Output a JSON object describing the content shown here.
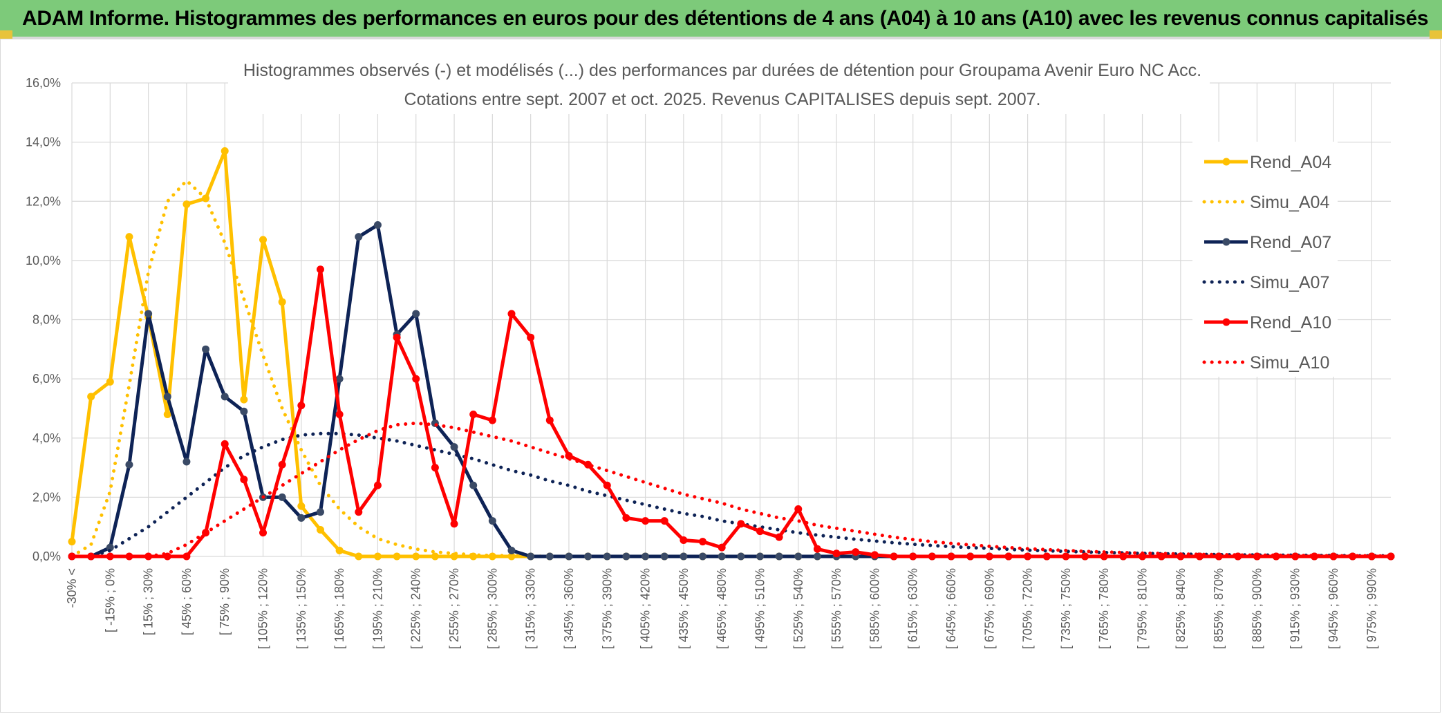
{
  "banner": {
    "title": "ADAM Informe. Histogrammes des performances en euros pour des détentions de 4 ans (A04) à 10 ans (A10) avec les revenus connus capitalisés"
  },
  "colors": {
    "banner_bg": "#7dca7a",
    "A04": "#ffc000",
    "A07": "#0e2356",
    "A10": "#ff0000",
    "grid": "#d9d9d9",
    "text": "#595959"
  },
  "chart_data": {
    "type": "line",
    "title_line1": "Histogrammes observés (-) et modélisés (...) des performances par durées de détention pour Groupama Avenir Euro NC Acc.",
    "title_line2": "Cotations entre sept. 2007 et oct. 2025. Revenus CAPITALISES depuis sept. 2007.",
    "ylim": [
      0,
      16
    ],
    "y_ticks": [
      "0,0%",
      "2,0%",
      "4,0%",
      "6,0%",
      "8,0%",
      "10,0%",
      "12,0%",
      "14,0%",
      "16,0%"
    ],
    "x_tick_labels": [
      "-30% <",
      "[ -15% ; 0%",
      "[ 15% ; 30%",
      "[ 45% ; 60%",
      "[ 75% ; 90%",
      "[ 105% ; 120%",
      "[ 135% ; 150%",
      "[ 165% ; 180%",
      "[ 195% ; 210%",
      "[ 225% ; 240%",
      "[ 255% ; 270%",
      "[ 285% ; 300%",
      "[ 315% ; 330%",
      "[ 345% ; 360%",
      "[ 375% ; 390%",
      "[ 405% ; 420%",
      "[ 435% ; 450%",
      "[ 465% ; 480%",
      "[ 495% ; 510%",
      "[ 525% ; 540%",
      "[ 555% ; 570%",
      "[ 585% ; 600%",
      "[ 615% ; 630%",
      "[ 645% ; 660%",
      "[ 675% ; 690%",
      "[ 705% ; 720%",
      "[ 735% ; 750%",
      "[ 765% ; 780%",
      "[ 795% ; 810%",
      "[ 825% ; 840%",
      "[ 855% ; 870%",
      "[ 885% ; 900%",
      "[ 915% ; 930%",
      "[ 945% ; 960%",
      "[ 975% ; 990%"
    ],
    "n_points": 70,
    "series": [
      {
        "name": "Rend_A04",
        "style": "solid",
        "color": "#ffc000",
        "values": [
          0.5,
          5.4,
          5.9,
          10.8,
          8.1,
          4.8,
          11.9,
          12.1,
          13.7,
          5.3,
          10.7,
          8.6,
          1.7,
          0.9,
          0.2,
          0,
          0,
          0,
          0,
          0,
          0,
          0,
          0,
          0,
          0,
          0,
          0,
          0,
          0,
          0,
          0,
          0,
          0,
          0,
          0,
          0,
          0,
          0,
          0,
          0,
          0,
          0,
          0,
          0,
          0,
          0,
          0,
          0,
          0,
          0,
          0,
          0,
          0,
          0,
          0,
          0,
          0,
          0,
          0,
          0,
          0,
          0,
          0,
          0,
          0,
          0,
          0,
          0,
          0,
          0
        ]
      },
      {
        "name": "Simu_A04",
        "style": "dotted",
        "color": "#ffc000",
        "values": [
          0,
          0.4,
          2.2,
          5.8,
          9.6,
          12.0,
          12.7,
          12.1,
          10.6,
          8.7,
          6.8,
          5.0,
          3.6,
          2.4,
          1.6,
          1.0,
          0.6,
          0.4,
          0.25,
          0.15,
          0.1,
          0.05,
          0.03,
          0.02,
          0.01,
          0,
          0,
          0,
          0,
          0,
          0,
          0,
          0,
          0,
          0,
          0,
          0,
          0,
          0,
          0,
          0,
          0,
          0,
          0,
          0,
          0,
          0,
          0,
          0,
          0,
          0,
          0,
          0,
          0,
          0,
          0,
          0,
          0,
          0,
          0,
          0,
          0,
          0,
          0,
          0,
          0,
          0,
          0,
          0,
          0
        ]
      },
      {
        "name": "Rend_A07",
        "style": "solid",
        "color": "#0e2356",
        "values": [
          0,
          0,
          0.3,
          3.1,
          8.2,
          5.4,
          3.2,
          7.0,
          5.4,
          4.9,
          2.0,
          2.0,
          1.3,
          1.5,
          6.0,
          10.8,
          11.2,
          7.5,
          8.2,
          4.5,
          3.7,
          2.4,
          1.2,
          0.2,
          0,
          0,
          0,
          0,
          0,
          0,
          0,
          0,
          0,
          0,
          0,
          0,
          0,
          0,
          0,
          0,
          0,
          0,
          0,
          0,
          0,
          0,
          0,
          0,
          0,
          0,
          0,
          0,
          0,
          0,
          0,
          0,
          0,
          0,
          0,
          0,
          0,
          0,
          0,
          0,
          0,
          0,
          0,
          0,
          0,
          0
        ]
      },
      {
        "name": "Simu_A07",
        "style": "dotted",
        "color": "#0e2356",
        "values": [
          0,
          0,
          0.2,
          0.6,
          1.0,
          1.5,
          2.0,
          2.5,
          3.0,
          3.4,
          3.7,
          3.95,
          4.1,
          4.15,
          4.15,
          4.1,
          4.0,
          3.9,
          3.75,
          3.6,
          3.45,
          3.3,
          3.1,
          2.9,
          2.75,
          2.55,
          2.4,
          2.2,
          2.05,
          1.9,
          1.75,
          1.6,
          1.45,
          1.35,
          1.2,
          1.1,
          1.0,
          0.9,
          0.8,
          0.72,
          0.65,
          0.58,
          0.52,
          0.46,
          0.41,
          0.37,
          0.33,
          0.3,
          0.27,
          0.24,
          0.21,
          0.19,
          0.17,
          0.15,
          0.13,
          0.12,
          0.1,
          0.09,
          0.08,
          0.07,
          0.06,
          0.05,
          0.05,
          0.04,
          0.04,
          0.03,
          0.03,
          0.02,
          0.02,
          0.02
        ]
      },
      {
        "name": "Rend_A10",
        "style": "solid",
        "color": "#ff0000",
        "values": [
          0,
          0,
          0,
          0,
          0,
          0,
          0,
          0.8,
          3.8,
          2.6,
          0.8,
          3.1,
          5.1,
          9.7,
          4.8,
          1.5,
          2.4,
          7.4,
          6.0,
          3.0,
          1.1,
          4.8,
          4.6,
          8.2,
          7.4,
          4.6,
          3.4,
          3.1,
          2.4,
          1.3,
          1.2,
          1.2,
          0.55,
          0.5,
          0.3,
          1.1,
          0.85,
          0.65,
          1.6,
          0.25,
          0.1,
          0.15,
          0.05,
          0,
          0,
          0,
          0,
          0,
          0,
          0,
          0,
          0,
          0,
          0,
          0,
          0,
          0,
          0,
          0,
          0,
          0,
          0,
          0,
          0,
          0,
          0,
          0,
          0,
          0,
          0
        ]
      },
      {
        "name": "Simu_A10",
        "style": "dotted",
        "color": "#ff0000",
        "values": [
          0,
          0,
          0,
          0,
          0,
          0.1,
          0.4,
          0.8,
          1.2,
          1.6,
          2.0,
          2.4,
          2.8,
          3.2,
          3.6,
          3.95,
          4.25,
          4.45,
          4.5,
          4.45,
          4.35,
          4.2,
          4.05,
          3.9,
          3.7,
          3.5,
          3.3,
          3.1,
          2.9,
          2.7,
          2.5,
          2.3,
          2.1,
          1.95,
          1.8,
          1.6,
          1.45,
          1.3,
          1.2,
          1.05,
          0.95,
          0.85,
          0.75,
          0.65,
          0.57,
          0.5,
          0.44,
          0.39,
          0.34,
          0.3,
          0.26,
          0.23,
          0.2,
          0.17,
          0.15,
          0.13,
          0.11,
          0.1,
          0.08,
          0.07,
          0.06,
          0.05,
          0.04,
          0.04,
          0.03,
          0.03,
          0.02,
          0.02,
          0.02,
          0.01
        ]
      }
    ]
  }
}
